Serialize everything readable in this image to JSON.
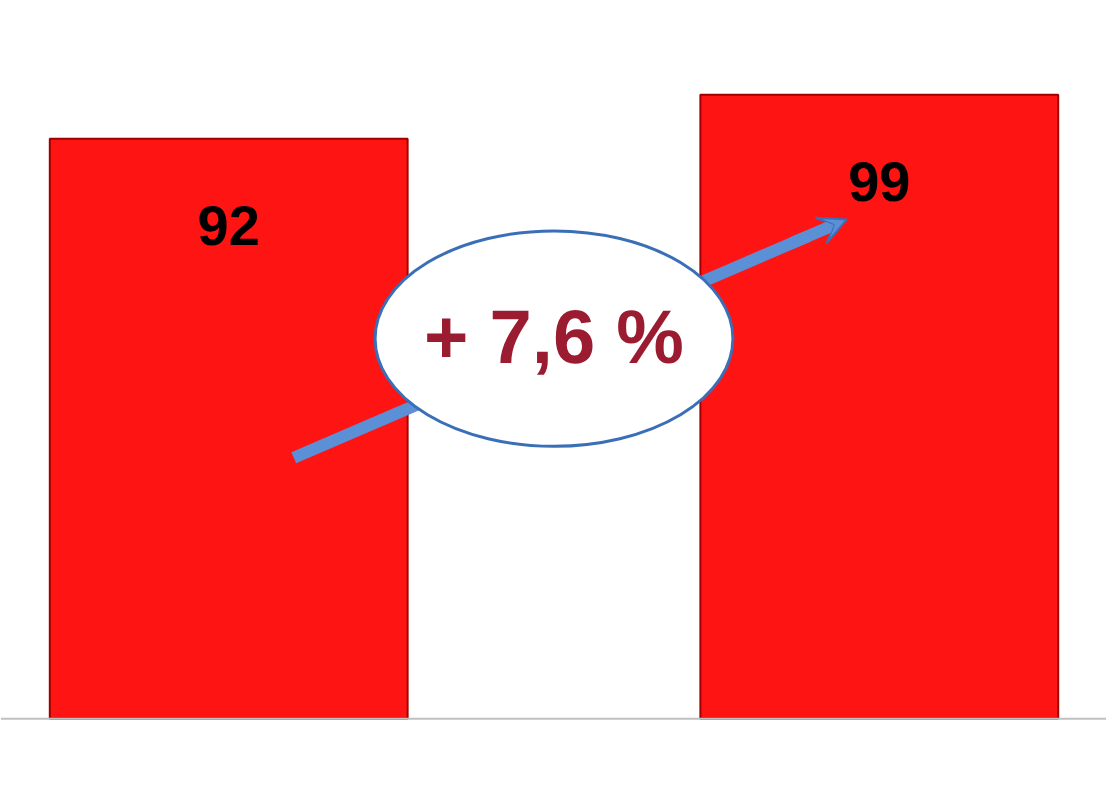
{
  "chart_data": {
    "type": "bar",
    "categories": [
      null,
      null
    ],
    "values": [
      92,
      99
    ],
    "color": "#ff1414",
    "data_labels": true,
    "annotations": [
      "+ 7,6 %"
    ]
  }
}
